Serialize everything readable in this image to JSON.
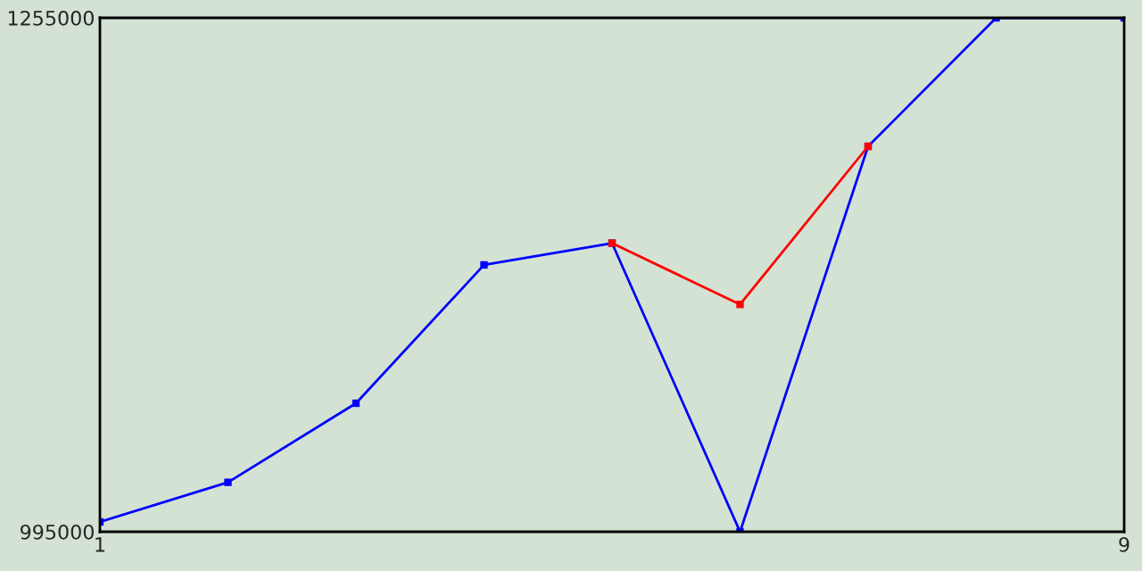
{
  "chart_data": {
    "type": "line",
    "x": [
      1,
      2,
      3,
      4,
      5,
      6,
      7,
      8,
      9
    ],
    "series": [
      {
        "color": "#0000ff",
        "values": [
          1000000,
          1020000,
          1060000,
          1130000,
          1141000,
          995000,
          1190000,
          1255000,
          1255000
        ]
      },
      {
        "color": "#ff0000",
        "x": [
          5,
          6,
          7
        ],
        "values": [
          1141000,
          1110000,
          1190000
        ]
      }
    ],
    "xlim": [
      1,
      9
    ],
    "ylim": [
      995000,
      1255000
    ],
    "xticks": [
      1,
      9
    ],
    "yticks": [
      995000,
      1255000
    ],
    "marker": "square",
    "line_style": "solid"
  }
}
